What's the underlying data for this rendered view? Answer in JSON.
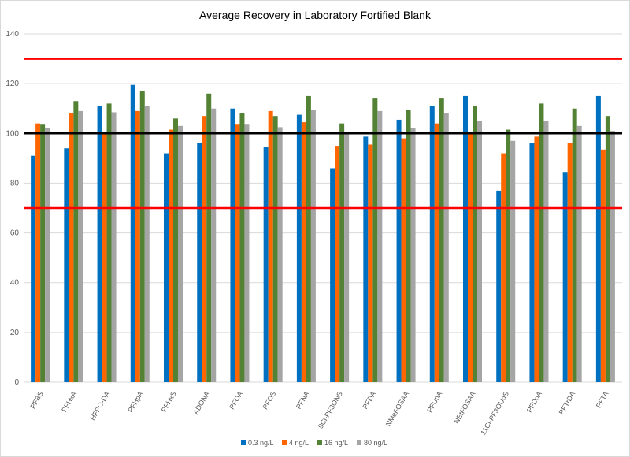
{
  "chart_data": {
    "type": "bar",
    "title": "Average Recovery in Laboratory Fortified Blank",
    "xlabel": "",
    "ylabel": "",
    "ylim": [
      0,
      140
    ],
    "yticks": [
      0,
      20,
      40,
      60,
      80,
      100,
      120,
      140
    ],
    "grid": true,
    "legend_position": "bottom",
    "categories": [
      "PFBS",
      "PFHxA",
      "HFPO-DA",
      "PFHpA",
      "PFHxS",
      "ADONA",
      "PFOA",
      "PFOS",
      "PFNA",
      "9Cl-PF3ONS",
      "PFDA",
      "NMeFOSAA",
      "PFUnA",
      "NEtFOSAA",
      "11Cl-PF3OUdS",
      "PFDoA",
      "PFTrDA",
      "PFTA"
    ],
    "series": [
      {
        "name": "0.3 ng/L",
        "color": "#0070c0",
        "values": [
          91,
          94,
          111,
          119.5,
          92,
          96,
          110,
          94.5,
          107.5,
          86,
          98.7,
          105.5,
          111,
          115,
          77,
          96,
          84.5,
          115
        ]
      },
      {
        "name": "4 ng/L",
        "color": "#ff6600",
        "values": [
          104,
          108,
          100.5,
          109,
          101.5,
          107,
          103.5,
          109,
          104.5,
          95,
          95.5,
          98,
          104,
          100.5,
          92,
          98.7,
          96,
          93.5
        ]
      },
      {
        "name": "16 ng/L",
        "color": "#548235",
        "values": [
          103.5,
          113,
          112,
          117,
          106,
          116,
          108,
          107,
          115,
          104,
          114,
          109.5,
          114,
          111,
          101.5,
          112,
          110,
          107
        ]
      },
      {
        "name": "80 ng/L",
        "color": "#a5a5a5",
        "values": [
          102,
          109,
          108.5,
          111,
          103,
          110,
          103.5,
          102.5,
          109.5,
          100,
          109,
          102,
          108,
          105,
          97,
          105,
          103,
          101
        ]
      }
    ],
    "reference_lines": [
      {
        "value": 130,
        "color": "#ff0000"
      },
      {
        "value": 100,
        "color": "#000000"
      },
      {
        "value": 70,
        "color": "#ff0000"
      }
    ]
  }
}
